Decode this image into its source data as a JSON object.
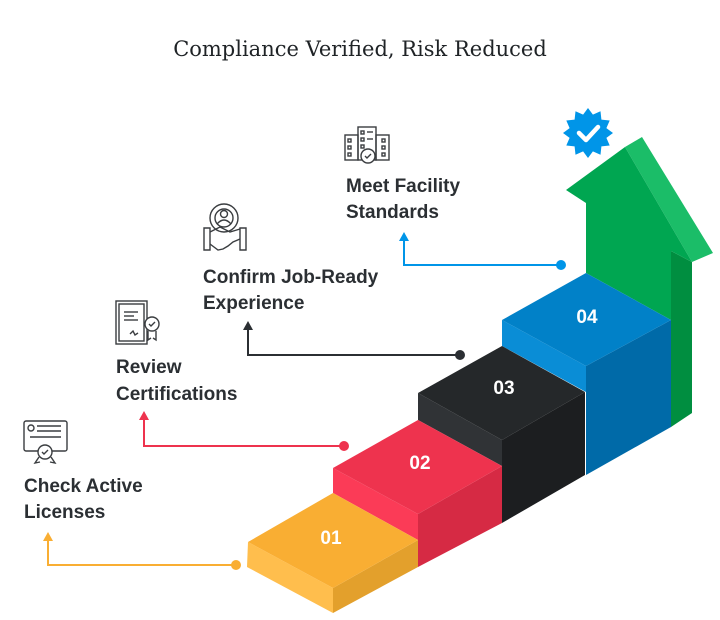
{
  "title": "Compliance Verified, Risk Reduced",
  "steps": [
    {
      "number": "01",
      "label_lines": [
        "Check Active",
        "Licenses"
      ],
      "icon": "license-card-icon",
      "color": "#f9ae33"
    },
    {
      "number": "02",
      "label_lines": [
        "Review",
        "Certifications"
      ],
      "icon": "certificate-icon",
      "color": "#ee334e"
    },
    {
      "number": "03",
      "label_lines": [
        "Confirm Job-Ready",
        "Experience"
      ],
      "icon": "gear-handshake-icon",
      "color": "#25282a"
    },
    {
      "number": "04",
      "label_lines": [
        "Meet Facility",
        "Standards"
      ],
      "icon": "building-check-icon",
      "color": "#0181c8"
    }
  ],
  "arrow_color": "#00a651",
  "badge": {
    "icon": "verified-check-badge-icon",
    "color": "#0095e8"
  }
}
